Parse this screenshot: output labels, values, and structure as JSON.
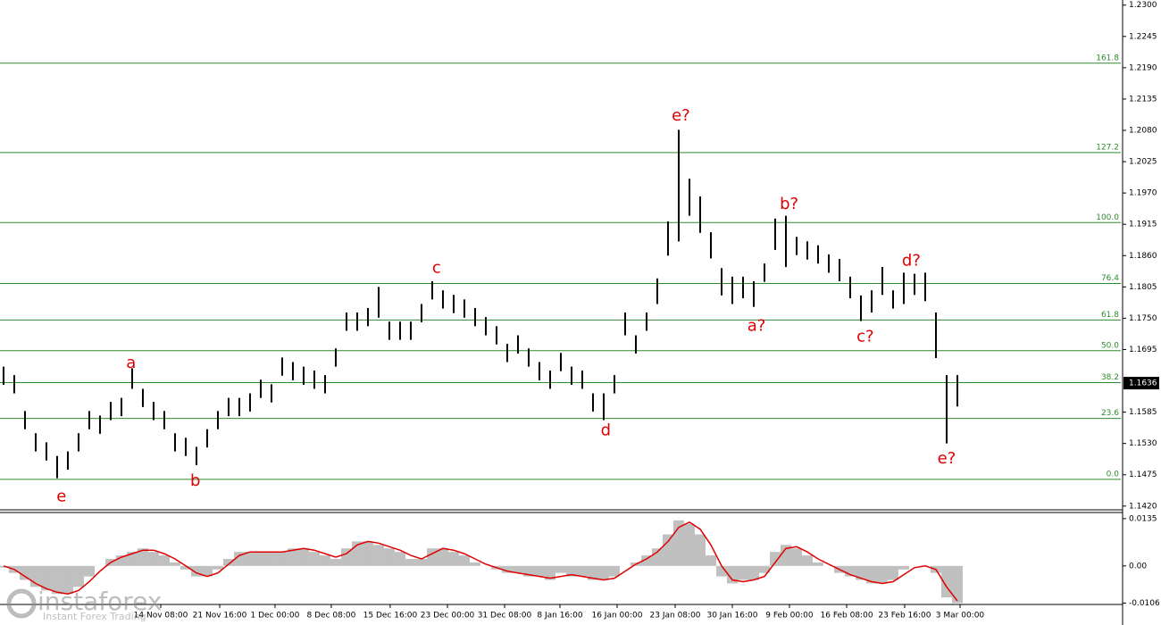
{
  "chart_data": {
    "type": "ohlc",
    "xlim": [
      -0.33,
      104.25
    ],
    "ylim": [
      1.1415,
      1.2309
    ],
    "yticks": [
      {
        "value": 1.23,
        "label": "1.2300"
      },
      {
        "value": 1.2245,
        "label": "1.2245"
      },
      {
        "value": 1.219,
        "label": "1.2190"
      },
      {
        "value": 1.2135,
        "label": "1.2135"
      },
      {
        "value": 1.208,
        "label": "1.2080"
      },
      {
        "value": 1.2025,
        "label": "1.2025"
      },
      {
        "value": 1.197,
        "label": "1.1970"
      },
      {
        "value": 1.1915,
        "label": "1.1915"
      },
      {
        "value": 1.186,
        "label": "1.1860"
      },
      {
        "value": 1.1805,
        "label": "1.1805"
      },
      {
        "value": 1.175,
        "label": "1.1750"
      },
      {
        "value": 1.1695,
        "label": "1.1695"
      },
      {
        "value": 1.1585,
        "label": "1.1585"
      },
      {
        "value": 1.153,
        "label": "1.1530"
      },
      {
        "value": 1.1475,
        "label": "1.1475"
      },
      {
        "value": 1.142,
        "label": "1.1420"
      }
    ],
    "xticks": [
      {
        "value": 14.67,
        "label": "14 Nov 08:00"
      },
      {
        "value": 20.17,
        "label": "21 Nov 16:00"
      },
      {
        "value": 25.33,
        "label": "1 Dec 00:00"
      },
      {
        "value": 30.58,
        "label": "8 Dec 08:00"
      },
      {
        "value": 36.08,
        "label": "15 Dec 16:00"
      },
      {
        "value": 41.42,
        "label": "23 Dec 00:00"
      },
      {
        "value": 46.75,
        "label": "31 Dec 08:00"
      },
      {
        "value": 51.92,
        "label": "8 Jan 16:00"
      },
      {
        "value": 57.25,
        "label": "16 Jan 00:00"
      },
      {
        "value": 62.67,
        "label": "23 Jan 08:00"
      },
      {
        "value": 68.0,
        "label": "30 Jan 16:00"
      },
      {
        "value": 73.33,
        "label": "9 Feb 00:00"
      },
      {
        "value": 78.67,
        "label": "16 Feb 08:00"
      },
      {
        "value": 84.08,
        "label": "23 Feb 16:00"
      },
      {
        "value": 89.25,
        "label": "3 Mar 00:00"
      }
    ],
    "bar_color": "#000000",
    "high": [
      1.1665,
      1.165,
      1.1587,
      1.1548,
      1.1532,
      1.1508,
      1.1516,
      1.1548,
      1.1587,
      1.1579,
      1.1603,
      1.161,
      1.1662,
      1.1626,
      1.1603,
      1.1587,
      1.1548,
      1.154,
      1.1524,
      1.1555,
      1.1587,
      1.161,
      1.161,
      1.1618,
      1.1642,
      1.1634,
      1.1681,
      1.1673,
      1.1665,
      1.1658,
      1.165,
      1.1697,
      1.176,
      1.176,
      1.1768,
      1.1805,
      1.1744,
      1.1744,
      1.1744,
      1.1775,
      1.1815,
      1.1799,
      1.1791,
      1.1783,
      1.1768,
      1.1752,
      1.1736,
      1.1705,
      1.172,
      1.1697,
      1.1673,
      1.1658,
      1.1689,
      1.1665,
      1.1658,
      1.1618,
      1.1618,
      1.165,
      1.176,
      1.172,
      1.176,
      1.182,
      1.192,
      1.2081,
      1.1995,
      1.1964,
      1.1901,
      1.1838,
      1.1823,
      1.1823,
      1.1815,
      1.1846,
      1.1925,
      1.193,
      1.1893,
      1.1885,
      1.1878,
      1.1862,
      1.1854,
      1.1823,
      1.179,
      1.1799,
      1.184,
      1.1799,
      1.183,
      1.1828,
      1.183,
      1.176,
      1.165,
      1.165
    ],
    "low": [
      1.1633,
      1.1618,
      1.1555,
      1.1516,
      1.15,
      1.1469,
      1.1484,
      1.1516,
      1.1555,
      1.1547,
      1.1571,
      1.1578,
      1.1626,
      1.1594,
      1.1571,
      1.1555,
      1.1516,
      1.1508,
      1.1492,
      1.1523,
      1.1555,
      1.1578,
      1.1578,
      1.1586,
      1.161,
      1.1602,
      1.1649,
      1.1641,
      1.1633,
      1.1626,
      1.1618,
      1.1665,
      1.1728,
      1.1728,
      1.1736,
      1.1751,
      1.1712,
      1.1712,
      1.1712,
      1.1743,
      1.1783,
      1.1767,
      1.1759,
      1.1751,
      1.1736,
      1.172,
      1.1704,
      1.1673,
      1.1688,
      1.1665,
      1.1641,
      1.1626,
      1.1657,
      1.1633,
      1.1626,
      1.1586,
      1.1571,
      1.1618,
      1.172,
      1.1688,
      1.1728,
      1.1775,
      1.186,
      1.1885,
      1.193,
      1.19,
      1.1855,
      1.179,
      1.1775,
      1.1785,
      1.177,
      1.1814,
      1.187,
      1.184,
      1.1861,
      1.1853,
      1.1846,
      1.183,
      1.1815,
      1.1785,
      1.1745,
      1.176,
      1.1791,
      1.1767,
      1.1775,
      1.1791,
      1.178,
      1.168,
      1.153,
      1.1595
    ],
    "last_price": 1.1636,
    "fib_color": "#2e8b2e",
    "fib_levels": [
      {
        "price": 1.2198,
        "label": "161.8"
      },
      {
        "price": 1.2041,
        "label": "127.2"
      },
      {
        "price": 1.1918,
        "label": "100.0"
      },
      {
        "price": 1.1811,
        "label": "76.4"
      },
      {
        "price": 1.1747,
        "label": "61.8"
      },
      {
        "price": 1.1693,
        "label": "50.0"
      },
      {
        "price": 1.1637,
        "label": "38.2"
      },
      {
        "price": 1.1574,
        "label": "23.6"
      },
      {
        "price": 1.1467,
        "label": "0.0"
      }
    ],
    "annotation_color": "#e00000",
    "annotations": [
      {
        "text": "e",
        "x": 5.4,
        "y": 1.1436
      },
      {
        "text": "a",
        "x": 11.9,
        "y": 1.1671
      },
      {
        "text": "b",
        "x": 17.9,
        "y": 1.1464
      },
      {
        "text": "c",
        "x": 40.4,
        "y": 1.1838
      },
      {
        "text": "d",
        "x": 56.2,
        "y": 1.1552
      },
      {
        "text": "e?",
        "x": 63.2,
        "y": 1.2105
      },
      {
        "text": "a?",
        "x": 70.25,
        "y": 1.1736
      },
      {
        "text": "b?",
        "x": 73.3,
        "y": 1.195
      },
      {
        "text": "c?",
        "x": 80.4,
        "y": 1.1717
      },
      {
        "text": "d?",
        "x": 84.7,
        "y": 1.185
      },
      {
        "text": "e?",
        "x": 88.0,
        "y": 1.1503
      }
    ],
    "macd": {
      "ylim": [
        -0.0161,
        0.015
      ],
      "yticks": [
        0.0135,
        {
          "value": 0,
          "label": "0.00"
        },
        -0.0106
      ],
      "histogram_color": "#c0c0c0",
      "signal_color": "#e00000",
      "histogram": [
        -0.0005,
        -0.002,
        -0.004,
        -0.006,
        -0.007,
        -0.008,
        -0.008,
        -0.006,
        -0.003,
        0,
        0.002,
        0.003,
        0.004,
        0.005,
        0.004,
        0.003,
        0.001,
        -0.001,
        -0.003,
        -0.003,
        -0.001,
        0.002,
        0.004,
        0.004,
        0.004,
        0.004,
        0.004,
        0.005,
        0.005,
        0.004,
        0.003,
        0.002,
        0.005,
        0.007,
        0.007,
        0.006,
        0.005,
        0.004,
        0.002,
        0.002,
        0.005,
        0.005,
        0.004,
        0.003,
        0.001,
        0,
        -0.001,
        -0.002,
        -0.002,
        -0.003,
        -0.003,
        -0.004,
        -0.002,
        -0.003,
        -0.003,
        -0.004,
        -0.004,
        -0.003,
        0,
        0.001,
        0.003,
        0.005,
        0.009,
        0.013,
        0.012,
        0.009,
        0.003,
        -0.003,
        -0.005,
        -0.004,
        -0.004,
        -0.002,
        0.004,
        0.006,
        0.005,
        0.003,
        0.001,
        0,
        -0.002,
        -0.003,
        -0.004,
        -0.005,
        -0.005,
        -0.004,
        -0.001,
        0,
        0,
        -0.002,
        -0.009,
        -0.0106
      ],
      "signal": [
        0,
        -0.001,
        -0.003,
        -0.005,
        -0.0065,
        -0.0075,
        -0.008,
        -0.007,
        -0.0045,
        -0.0015,
        0.001,
        0.0025,
        0.0035,
        0.0045,
        0.0045,
        0.0035,
        0.002,
        0,
        -0.002,
        -0.003,
        -0.002,
        0.0005,
        0.003,
        0.004,
        0.004,
        0.004,
        0.004,
        0.0045,
        0.005,
        0.0045,
        0.0035,
        0.0025,
        0.0035,
        0.006,
        0.007,
        0.0065,
        0.0055,
        0.0045,
        0.003,
        0.002,
        0.0035,
        0.005,
        0.0045,
        0.0035,
        0.002,
        0.0005,
        -0.0005,
        -0.0015,
        -0.002,
        -0.0025,
        -0.003,
        -0.0035,
        -0.003,
        -0.0025,
        -0.003,
        -0.0035,
        -0.004,
        -0.0035,
        -0.0015,
        0.0005,
        0.002,
        0.004,
        0.007,
        0.011,
        0.0125,
        0.0105,
        0.006,
        0,
        -0.004,
        -0.0045,
        -0.004,
        -0.003,
        0.001,
        0.005,
        0.0055,
        0.004,
        0.002,
        0.0005,
        -0.001,
        -0.0025,
        -0.0035,
        -0.0045,
        -0.005,
        -0.0045,
        -0.0025,
        -0.0005,
        0,
        -0.001,
        -0.006,
        -0.01
      ]
    },
    "watermark": {
      "brand": "instaforex",
      "tagline": "Instant Forex Trading"
    }
  }
}
